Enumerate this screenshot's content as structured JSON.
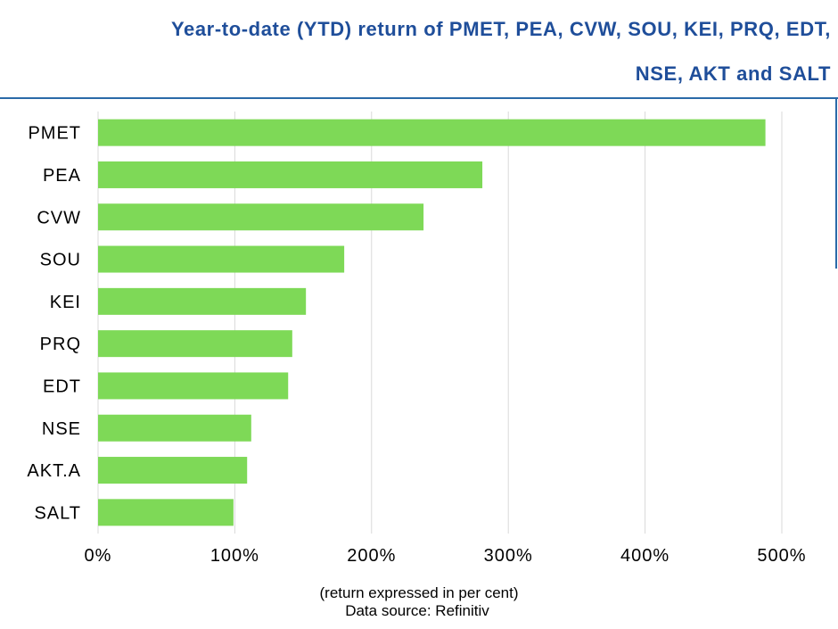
{
  "title_line1": "Year-to-date (YTD) return of  PMET, PEA, CVW, SOU, KEI, PRQ, EDT,",
  "title_line2": "NSE, AKT and SALT",
  "note": "(return expressed in per cent)",
  "source": "Data source: Refinitiv",
  "colors": {
    "bar": "#7ed957",
    "title": "#1f4e9a",
    "rule": "#2a6aa8",
    "grid": "#d9d9d9"
  },
  "chart_data": {
    "type": "bar",
    "orientation": "horizontal",
    "categories": [
      "PMET",
      "PEA",
      "CVW",
      "SOU",
      "KEI",
      "PRQ",
      "EDT",
      "NSE",
      "AKT.A",
      "SALT"
    ],
    "values": [
      488,
      281,
      238,
      180,
      152,
      142,
      139,
      112,
      109,
      99
    ],
    "xlim": [
      0,
      500
    ],
    "xticks": [
      "0%",
      "100%",
      "200%",
      "300%",
      "400%",
      "500%"
    ],
    "xlabel": "(return expressed in per cent)",
    "grid": true,
    "legend": "none"
  }
}
